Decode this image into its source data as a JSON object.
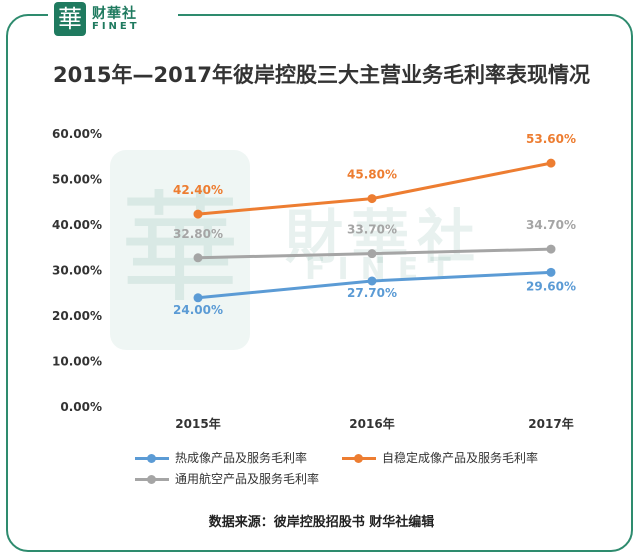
{
  "logo": {
    "mark": "華",
    "name_cn": "财華社",
    "name_en": "FINET"
  },
  "watermark": {
    "mark": "華",
    "text_cn": "財華社",
    "text_en": "FINET"
  },
  "source_note": "数据来源：彼岸控股招股书  财华社编辑",
  "colors": {
    "frame": "#2e8b6e",
    "brand": "#1f7a5f"
  },
  "chart_data": {
    "type": "line",
    "title": "2015年—2017年彼岸控股三大主营业务毛利率表现情况",
    "categories": [
      "2015年",
      "2016年",
      "2017年"
    ],
    "ylim": [
      0,
      60
    ],
    "yticks": [
      "0.00%",
      "10.00%",
      "20.00%",
      "30.00%",
      "40.00%",
      "50.00%",
      "60.00%"
    ],
    "grid": false,
    "legend_position": "bottom",
    "series": [
      {
        "name": "热成像产品及服务毛利率",
        "color": "#5b9bd5",
        "values": [
          24.0,
          27.7,
          29.6
        ],
        "labels": [
          "24.00%",
          "27.70%",
          "29.60%"
        ]
      },
      {
        "name": "自稳定成像产品及服务毛利率",
        "color": "#ed7d31",
        "values": [
          42.4,
          45.8,
          53.6
        ],
        "labels": [
          "42.40%",
          "45.80%",
          "53.60%"
        ]
      },
      {
        "name": "通用航空产品及服务毛利率",
        "color": "#a5a5a5",
        "values": [
          32.8,
          33.7,
          34.7
        ],
        "labels": [
          "32.80%",
          "33.70%",
          "34.70%"
        ]
      }
    ]
  }
}
